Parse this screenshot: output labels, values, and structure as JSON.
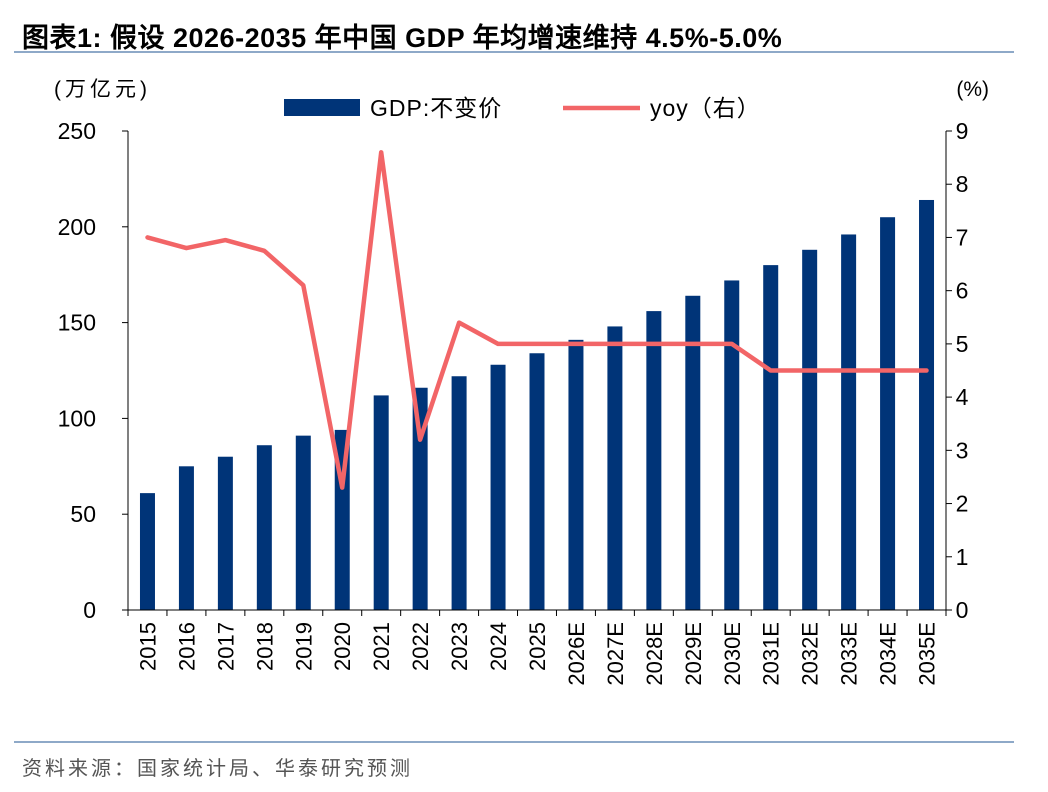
{
  "title": "图表1:   假设 2026-2035 年中国 GDP 年均增速维持 4.5%-5.0%",
  "source": "资料来源：国家统计局、华泰研究预测",
  "chart_data": {
    "type": "bar+line",
    "categories": [
      "2015",
      "2016",
      "2017",
      "2018",
      "2019",
      "2020",
      "2021",
      "2022",
      "2023",
      "2024",
      "2025",
      "2026E",
      "2027E",
      "2028E",
      "2029E",
      "2030E",
      "2031E",
      "2032E",
      "2033E",
      "2034E",
      "2035E"
    ],
    "series": [
      {
        "name": "GDP:不变价",
        "type": "bar",
        "axis": "left",
        "color": "#003478",
        "values": [
          61,
          75,
          80,
          86,
          91,
          94,
          112,
          116,
          122,
          128,
          134,
          141,
          148,
          156,
          164,
          172,
          180,
          188,
          196,
          205,
          214
        ]
      },
      {
        "name": "yoy（右）",
        "type": "line",
        "axis": "right",
        "color": "#f26567",
        "values": [
          7.0,
          6.8,
          6.95,
          6.75,
          6.1,
          2.3,
          8.6,
          3.2,
          5.4,
          5.0,
          5.0,
          5.0,
          5.0,
          5.0,
          5.0,
          5.0,
          4.5,
          4.5,
          4.5,
          4.5,
          4.5
        ]
      }
    ],
    "left_axis": {
      "label": "(万亿元)",
      "min": 0,
      "max": 250,
      "ticks": [
        0,
        50,
        100,
        150,
        200,
        250
      ]
    },
    "right_axis": {
      "label": "(%)",
      "min": 0,
      "max": 9,
      "ticks": [
        0,
        1,
        2,
        3,
        4,
        5,
        6,
        7,
        8,
        9
      ]
    },
    "legend_position": "top-center",
    "grid": false
  }
}
